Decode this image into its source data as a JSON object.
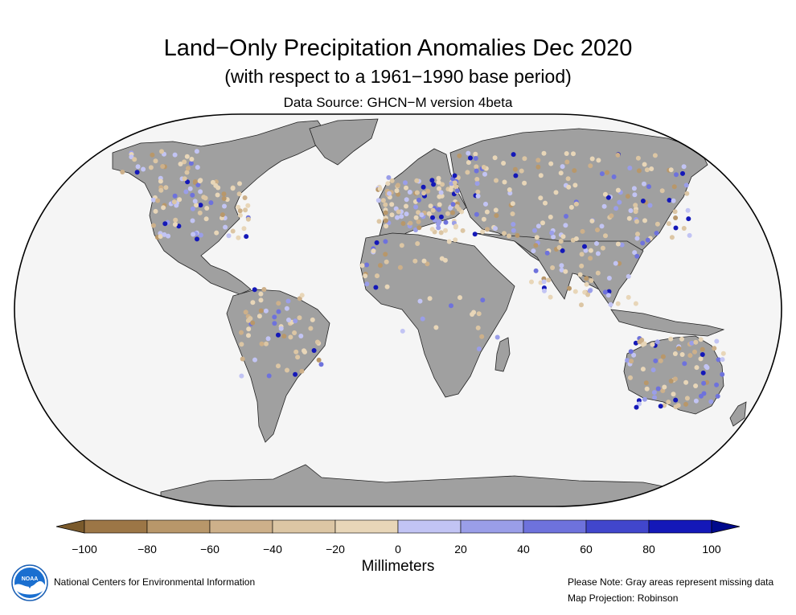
{
  "title": "Land−Only Precipitation Anomalies Dec 2020",
  "subtitle": "(with respect to a 1961−1990 base period)",
  "source": "Data Source: GHCN−M version 4beta",
  "legend": {
    "units": "Millimeters",
    "ticks": [
      "−100",
      "−80",
      "−60",
      "−40",
      "−20",
      "0",
      "20",
      "40",
      "60",
      "80",
      "100"
    ],
    "colors": [
      "#7a5a2c",
      "#9c7646",
      "#b8976a",
      "#cdb08a",
      "#dcc6a4",
      "#e8d6b8",
      "#c2c4f4",
      "#9a9ee8",
      "#6e72dc",
      "#4146cc",
      "#1418b8",
      "#000a8c"
    ]
  },
  "footer": {
    "org": "National Centers for Environmental Information",
    "note": "Please Note: Gray areas represent missing data",
    "projection": "Map Projection: Robinson"
  },
  "logo": {
    "icon": "noaa-logo-icon",
    "text": "NOAA"
  },
  "colors": {
    "land": "#a0a0a0",
    "ocean": "#f5f5f5",
    "border": "#000000"
  }
}
